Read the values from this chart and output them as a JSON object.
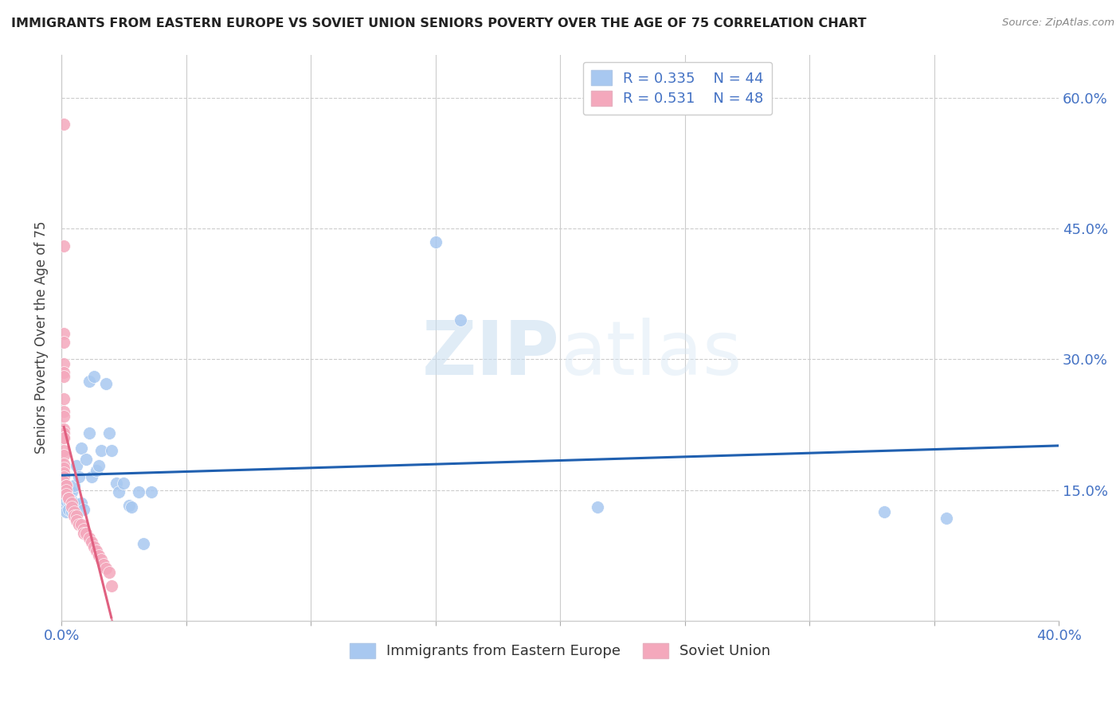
{
  "title": "IMMIGRANTS FROM EASTERN EUROPE VS SOVIET UNION SENIORS POVERTY OVER THE AGE OF 75 CORRELATION CHART",
  "source": "Source: ZipAtlas.com",
  "ylabel": "Seniors Poverty Over the Age of 75",
  "xlim": [
    0.0,
    0.4
  ],
  "ylim": [
    0.0,
    0.65
  ],
  "blue_R": 0.335,
  "blue_N": 44,
  "pink_R": 0.531,
  "pink_N": 48,
  "blue_color": "#a8c8f0",
  "pink_color": "#f4a8bc",
  "blue_line_color": "#2060b0",
  "pink_line_color": "#e06080",
  "legend_label_blue": "Immigrants from Eastern Europe",
  "legend_label_pink": "Soviet Union",
  "watermark_zip": "ZIP",
  "watermark_atlas": "atlas",
  "blue_x": [
    0.001,
    0.001,
    0.001,
    0.002,
    0.002,
    0.003,
    0.003,
    0.003,
    0.003,
    0.004,
    0.004,
    0.004,
    0.005,
    0.005,
    0.005,
    0.006,
    0.007,
    0.008,
    0.008,
    0.009,
    0.01,
    0.011,
    0.011,
    0.012,
    0.013,
    0.014,
    0.015,
    0.016,
    0.018,
    0.019,
    0.02,
    0.022,
    0.023,
    0.025,
    0.027,
    0.028,
    0.031,
    0.033,
    0.036,
    0.15,
    0.16,
    0.215,
    0.33,
    0.355
  ],
  "blue_y": [
    0.155,
    0.14,
    0.13,
    0.138,
    0.125,
    0.145,
    0.14,
    0.138,
    0.128,
    0.148,
    0.138,
    0.125,
    0.155,
    0.135,
    0.128,
    0.178,
    0.165,
    0.198,
    0.135,
    0.128,
    0.185,
    0.215,
    0.275,
    0.165,
    0.28,
    0.172,
    0.178,
    0.195,
    0.272,
    0.215,
    0.195,
    0.158,
    0.148,
    0.158,
    0.132,
    0.13,
    0.148,
    0.088,
    0.148,
    0.435,
    0.345,
    0.13,
    0.125,
    0.118
  ],
  "pink_x": [
    0.001,
    0.001,
    0.001,
    0.001,
    0.001,
    0.001,
    0.001,
    0.001,
    0.001,
    0.001,
    0.001,
    0.001,
    0.001,
    0.001,
    0.001,
    0.001,
    0.001,
    0.001,
    0.001,
    0.001,
    0.001,
    0.002,
    0.002,
    0.002,
    0.002,
    0.003,
    0.003,
    0.004,
    0.004,
    0.005,
    0.005,
    0.006,
    0.006,
    0.007,
    0.008,
    0.009,
    0.009,
    0.01,
    0.011,
    0.012,
    0.013,
    0.014,
    0.015,
    0.016,
    0.017,
    0.018,
    0.019,
    0.02
  ],
  "pink_y": [
    0.57,
    0.43,
    0.33,
    0.32,
    0.295,
    0.285,
    0.28,
    0.255,
    0.24,
    0.235,
    0.22,
    0.215,
    0.21,
    0.21,
    0.195,
    0.19,
    0.18,
    0.175,
    0.17,
    0.165,
    0.16,
    0.155,
    0.155,
    0.15,
    0.145,
    0.14,
    0.14,
    0.135,
    0.13,
    0.125,
    0.12,
    0.12,
    0.115,
    0.11,
    0.11,
    0.105,
    0.1,
    0.1,
    0.095,
    0.09,
    0.085,
    0.08,
    0.075,
    0.07,
    0.065,
    0.06,
    0.055,
    0.04
  ]
}
